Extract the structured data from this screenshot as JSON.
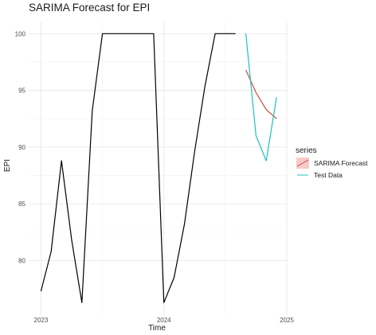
{
  "chart_data": {
    "type": "line",
    "title": "SARIMA Forecast for EPI",
    "xlabel": "Time",
    "ylabel": "EPI",
    "x_ticks": [
      "2023",
      "2024",
      "2025"
    ],
    "y_ticks": [
      "80",
      "85",
      "90",
      "95",
      "100"
    ],
    "xlim": [
      2022.9,
      2025.0
    ],
    "ylim": [
      75.2,
      101.0
    ],
    "grid": true,
    "legend": {
      "title": "series",
      "position": "right",
      "entries": [
        {
          "name": "SARIMA Forecast",
          "color": "#cc4c3a"
        },
        {
          "name": "Test Data",
          "color": "#1fbfc4"
        }
      ]
    },
    "history": {
      "color": "#000000",
      "x": [
        2023.0,
        2023.083,
        2023.167,
        2023.25,
        2023.333,
        2023.417,
        2023.5,
        2023.583,
        2023.667,
        2023.75,
        2023.833,
        2023.917,
        2024.0,
        2024.083,
        2024.167,
        2024.25,
        2024.333,
        2024.417,
        2024.5,
        2024.583
      ],
      "values": [
        77.3,
        80.8,
        88.8,
        81.8,
        76.3,
        93.2,
        100.0,
        100.0,
        100.0,
        100.0,
        100.0,
        100.0,
        76.3,
        78.5,
        83.2,
        89.6,
        95.3,
        100.0,
        100.0,
        100.0
      ]
    },
    "series": [
      {
        "name": "SARIMA Forecast",
        "color": "#cc4c3a",
        "x": [
          2024.667,
          2024.75,
          2024.833,
          2024.917
        ],
        "values": [
          96.8,
          94.8,
          93.3,
          92.5
        ]
      },
      {
        "name": "Test Data",
        "color": "#1fbfc4",
        "x": [
          2024.667,
          2024.75,
          2024.833,
          2024.917
        ],
        "values": [
          100.0,
          91.0,
          88.8,
          94.4
        ]
      }
    ]
  }
}
